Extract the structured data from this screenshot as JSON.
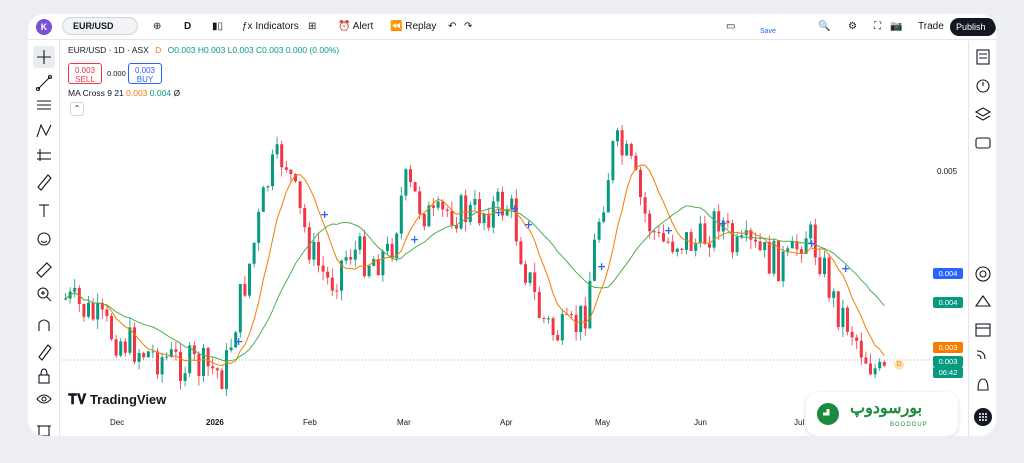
{
  "toolbar": {
    "app_icon": "K",
    "symbol": "EUR/USD",
    "interval": "D",
    "indicators_label": "Indicators",
    "alert_label": "Alert",
    "replay_label": "Replay",
    "save_label": "Save",
    "trade_label": "Trade",
    "publish_label": "Publish"
  },
  "legend": {
    "title": "EUR/USD · 1D · ASX",
    "d_badge": "D",
    "ohlc": "O0.003 H0.003 L0.003 C0.003 0.000 (0.00%)"
  },
  "order_buttons": {
    "sell_price": "0.003",
    "sell_label": "SELL",
    "spread": "0.000",
    "buy_price": "0.003",
    "buy_label": "BUY"
  },
  "indicator": {
    "name": "MA Cross",
    "params": "9 21",
    "value_fast": "0.003",
    "value_slow": "0.004",
    "suffix": "Ø"
  },
  "price_axis": {
    "label": "0.005",
    "tags": [
      {
        "text": "0.004",
        "color": "#2962ff"
      },
      {
        "text": "0.004",
        "color": "#089981"
      },
      {
        "text": "0.003",
        "color": "#f57c00"
      },
      {
        "text": "0.003",
        "color": "#089981"
      },
      {
        "text": "06:42",
        "color": "#089981"
      }
    ],
    "d_marker": "D"
  },
  "time_axis": {
    "labels": [
      "Dec",
      "2026",
      "Feb",
      "Mar",
      "Apr",
      "May",
      "Jun",
      "Jul"
    ]
  },
  "watermark": "TradingView",
  "badge": {
    "text": "بورسودوپ",
    "sub": "BOODOUP"
  },
  "colors": {
    "up": "#089981",
    "down": "#f23645",
    "ma_fast": "#f57c00",
    "ma_slow": "#4caf50",
    "cross": "#2962ff"
  }
}
